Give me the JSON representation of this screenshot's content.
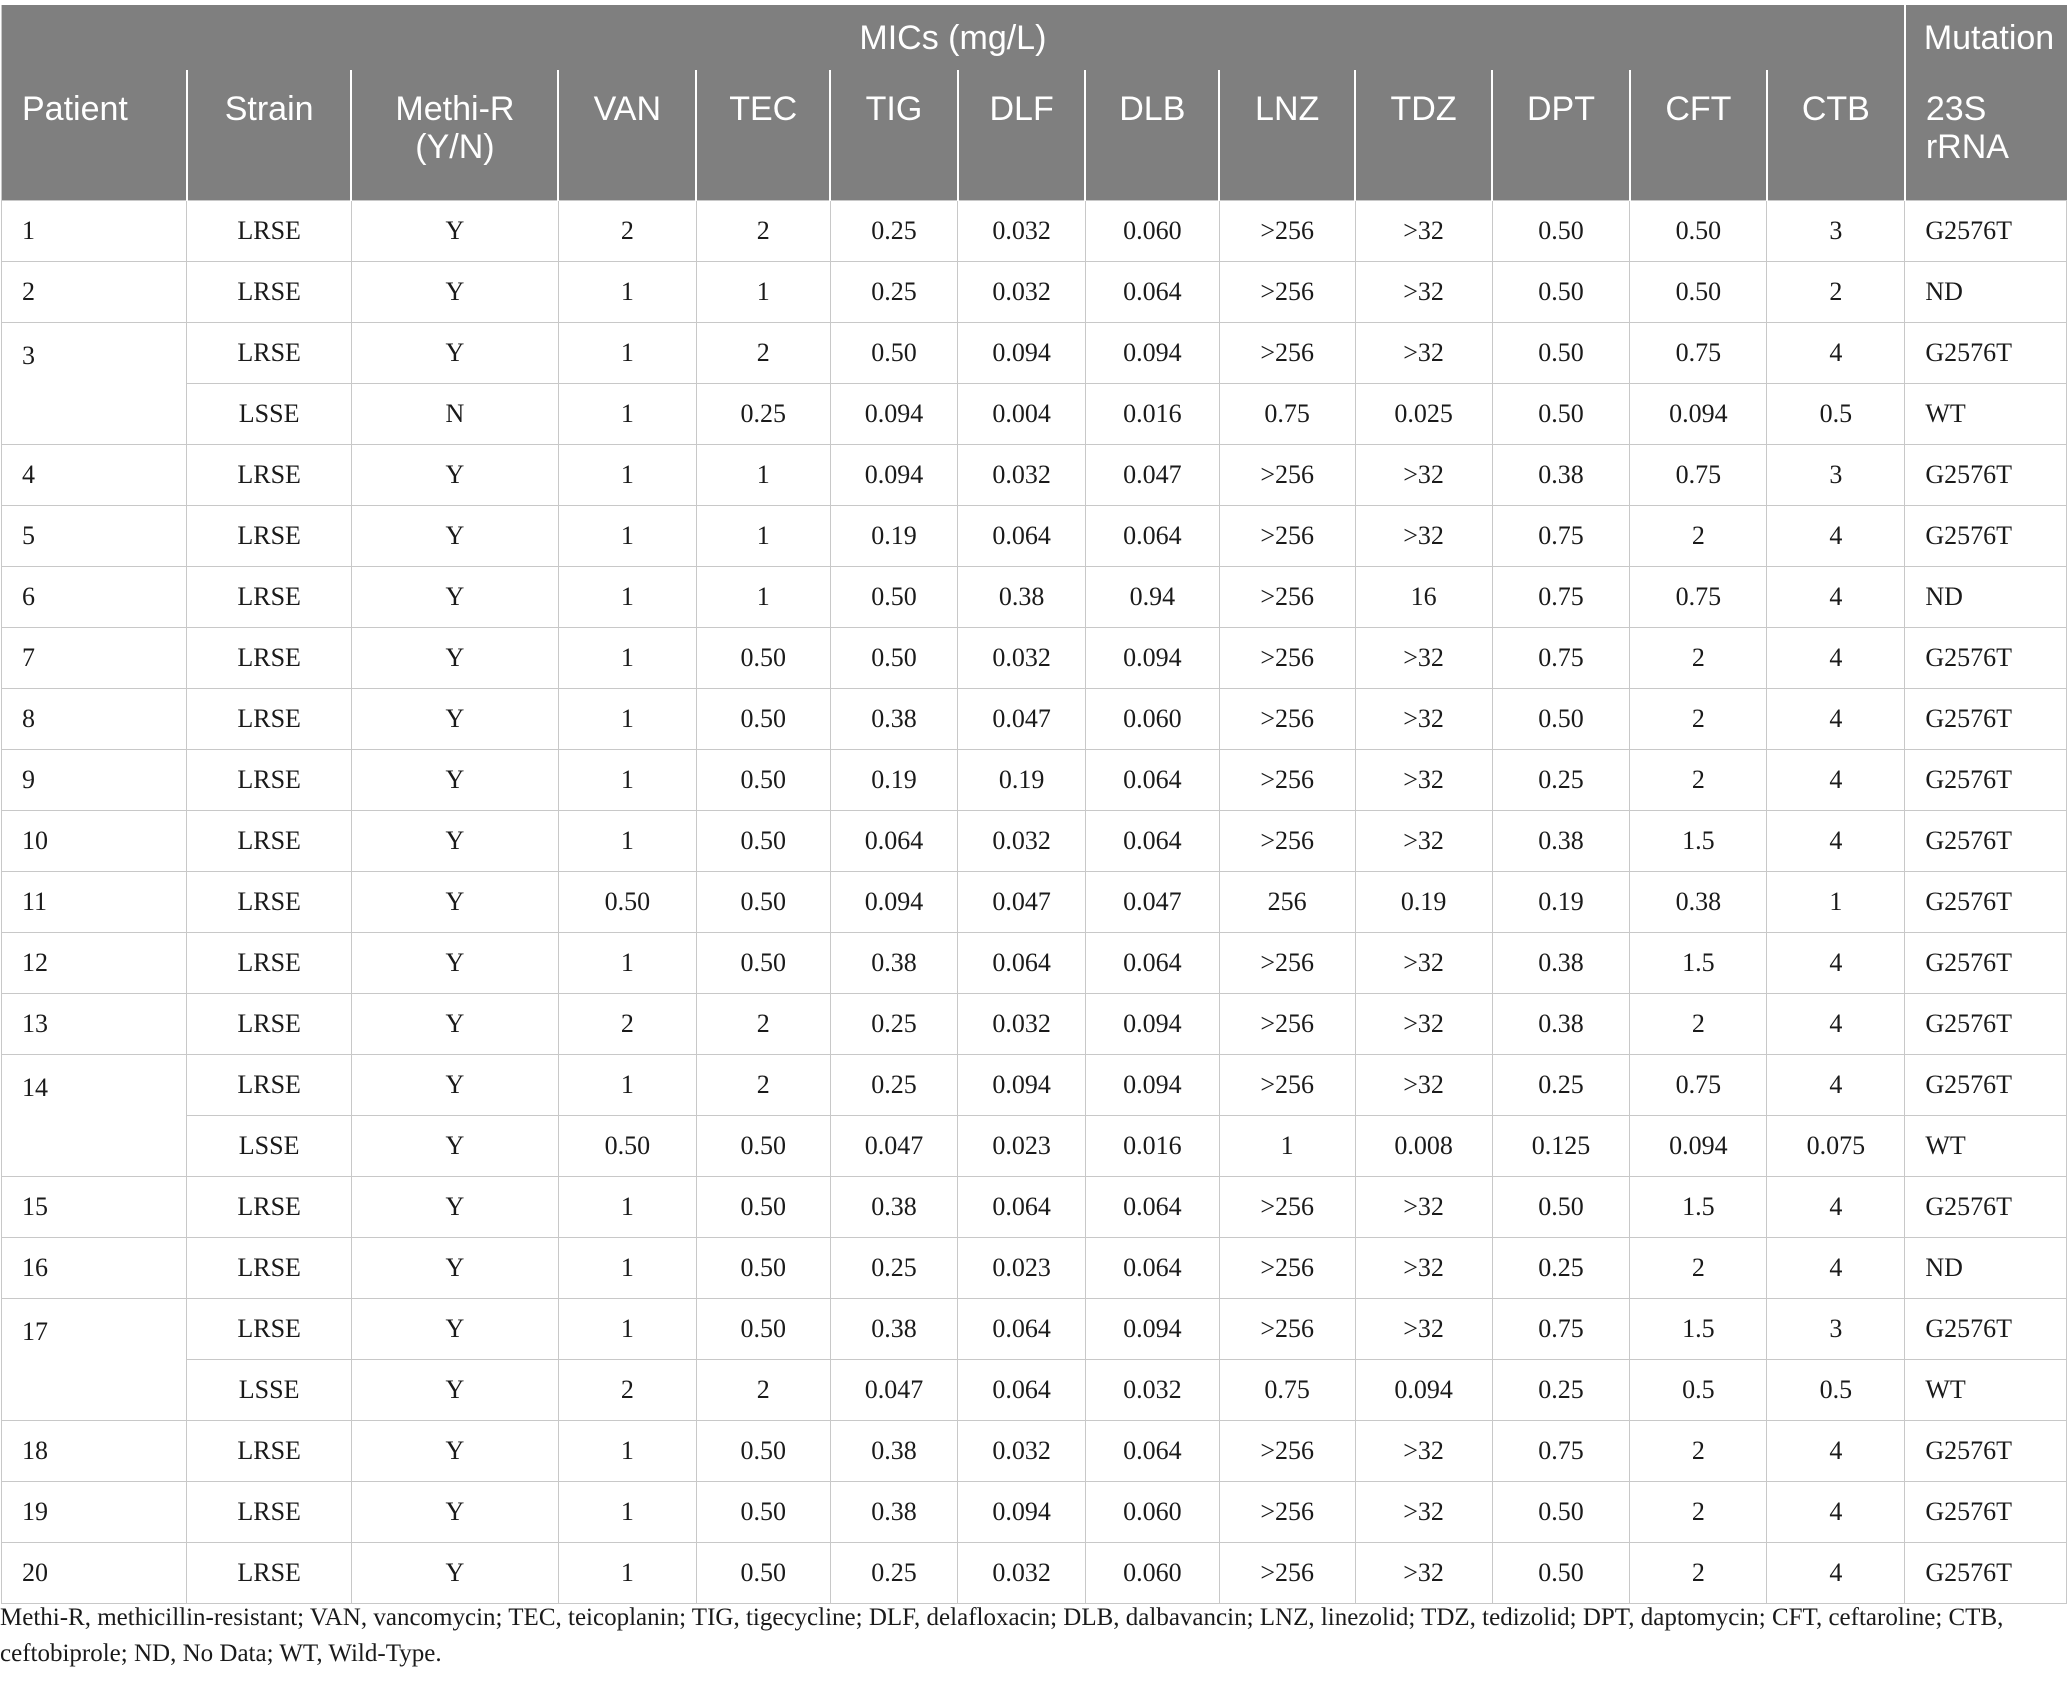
{
  "header": {
    "group_mics": "MICs (mg/L)",
    "group_mutation": "Mutation",
    "columns": [
      "Patient",
      "Strain",
      "Methi-R (Y/N)",
      "VAN",
      "TEC",
      "TIG",
      "DLF",
      "DLB",
      "LNZ",
      "TDZ",
      "DPT",
      "CFT",
      "CTB",
      "23S rRNA"
    ]
  },
  "rows": [
    {
      "patient": "1",
      "cells": [
        "LRSE",
        "Y",
        "2",
        "2",
        "0.25",
        "0.032",
        "0.060",
        ">256",
        ">32",
        "0.50",
        "0.50",
        "3",
        "G2576T"
      ]
    },
    {
      "patient": "2",
      "cells": [
        "LRSE",
        "Y",
        "1",
        "1",
        "0.25",
        "0.032",
        "0.064",
        ">256",
        ">32",
        "0.50",
        "0.50",
        "2",
        "ND"
      ]
    },
    {
      "patient": "3",
      "cells": [
        "LRSE",
        "Y",
        "1",
        "2",
        "0.50",
        "0.094",
        "0.094",
        ">256",
        ">32",
        "0.50",
        "0.75",
        "4",
        "G2576T"
      ]
    },
    {
      "patient": "",
      "cells": [
        "LSSE",
        "N",
        "1",
        "0.25",
        "0.094",
        "0.004",
        "0.016",
        "0.75",
        "0.025",
        "0.50",
        "0.094",
        "0.5",
        "WT"
      ]
    },
    {
      "patient": "4",
      "cells": [
        "LRSE",
        "Y",
        "1",
        "1",
        "0.094",
        "0.032",
        "0.047",
        ">256",
        ">32",
        "0.38",
        "0.75",
        "3",
        "G2576T"
      ]
    },
    {
      "patient": "5",
      "cells": [
        "LRSE",
        "Y",
        "1",
        "1",
        "0.19",
        "0.064",
        "0.064",
        ">256",
        ">32",
        "0.75",
        "2",
        "4",
        "G2576T"
      ]
    },
    {
      "patient": "6",
      "cells": [
        "LRSE",
        "Y",
        "1",
        "1",
        "0.50",
        "0.38",
        "0.94",
        ">256",
        "16",
        "0.75",
        "0.75",
        "4",
        "ND"
      ]
    },
    {
      "patient": "7",
      "cells": [
        "LRSE",
        "Y",
        "1",
        "0.50",
        "0.50",
        "0.032",
        "0.094",
        ">256",
        ">32",
        "0.75",
        "2",
        "4",
        "G2576T"
      ]
    },
    {
      "patient": "8",
      "cells": [
        "LRSE",
        "Y",
        "1",
        "0.50",
        "0.38",
        "0.047",
        "0.060",
        ">256",
        ">32",
        "0.50",
        "2",
        "4",
        "G2576T"
      ]
    },
    {
      "patient": "9",
      "cells": [
        "LRSE",
        "Y",
        "1",
        "0.50",
        "0.19",
        "0.19",
        "0.064",
        ">256",
        ">32",
        "0.25",
        "2",
        "4",
        "G2576T"
      ]
    },
    {
      "patient": "10",
      "cells": [
        "LRSE",
        "Y",
        "1",
        "0.50",
        "0.064",
        "0.032",
        "0.064",
        ">256",
        ">32",
        "0.38",
        "1.5",
        "4",
        "G2576T"
      ]
    },
    {
      "patient": "11",
      "cells": [
        "LRSE",
        "Y",
        "0.50",
        "0.50",
        "0.094",
        "0.047",
        "0.047",
        "256",
        "0.19",
        "0.19",
        "0.38",
        "1",
        "G2576T"
      ]
    },
    {
      "patient": "12",
      "cells": [
        "LRSE",
        "Y",
        "1",
        "0.50",
        "0.38",
        "0.064",
        "0.064",
        ">256",
        ">32",
        "0.38",
        "1.5",
        "4",
        "G2576T"
      ]
    },
    {
      "patient": "13",
      "cells": [
        "LRSE",
        "Y",
        "2",
        "2",
        "0.25",
        "0.032",
        "0.094",
        ">256",
        ">32",
        "0.38",
        "2",
        "4",
        "G2576T"
      ]
    },
    {
      "patient": "14",
      "cells": [
        "LRSE",
        "Y",
        "1",
        "2",
        "0.25",
        "0.094",
        "0.094",
        ">256",
        ">32",
        "0.25",
        "0.75",
        "4",
        "G2576T"
      ]
    },
    {
      "patient": "",
      "cells": [
        "LSSE",
        "Y",
        "0.50",
        "0.50",
        "0.047",
        "0.023",
        "0.016",
        "1",
        "0.008",
        "0.125",
        "0.094",
        "0.075",
        "WT"
      ]
    },
    {
      "patient": "15",
      "cells": [
        "LRSE",
        "Y",
        "1",
        "0.50",
        "0.38",
        "0.064",
        "0.064",
        ">256",
        ">32",
        "0.50",
        "1.5",
        "4",
        "G2576T"
      ]
    },
    {
      "patient": "16",
      "cells": [
        "LRSE",
        "Y",
        "1",
        "0.50",
        "0.25",
        "0.023",
        "0.064",
        ">256",
        ">32",
        "0.25",
        "2",
        "4",
        "ND"
      ]
    },
    {
      "patient": "17",
      "cells": [
        "LRSE",
        "Y",
        "1",
        "0.50",
        "0.38",
        "0.064",
        "0.094",
        ">256",
        ">32",
        "0.75",
        "1.5",
        "3",
        "G2576T"
      ]
    },
    {
      "patient": "",
      "cells": [
        "LSSE",
        "Y",
        "2",
        "2",
        "0.047",
        "0.064",
        "0.032",
        "0.75",
        "0.094",
        "0.25",
        "0.5",
        "0.5",
        "WT"
      ]
    },
    {
      "patient": "18",
      "cells": [
        "LRSE",
        "Y",
        "1",
        "0.50",
        "0.38",
        "0.032",
        "0.064",
        ">256",
        ">32",
        "0.75",
        "2",
        "4",
        "G2576T"
      ]
    },
    {
      "patient": "19",
      "cells": [
        "LRSE",
        "Y",
        "1",
        "0.50",
        "0.38",
        "0.094",
        "0.060",
        ">256",
        ">32",
        "0.50",
        "2",
        "4",
        "G2576T"
      ]
    },
    {
      "patient": "20",
      "cells": [
        "LRSE",
        "Y",
        "1",
        "0.50",
        "0.25",
        "0.032",
        "0.060",
        ">256",
        ">32",
        "0.50",
        "2",
        "4",
        "G2576T"
      ]
    }
  ],
  "footnote": "Methi-R, methicillin-resistant; VAN, vancomycin; TEC, teicoplanin; TIG, tigecycline; DLF, delafloxacin; DLB, dalbavancin; LNZ, linezolid; TDZ, tedizolid; DPT, daptomycin; CFT, ceftaroline; CTB, ceftobiprole; ND, No Data; WT, Wild-Type."
}
